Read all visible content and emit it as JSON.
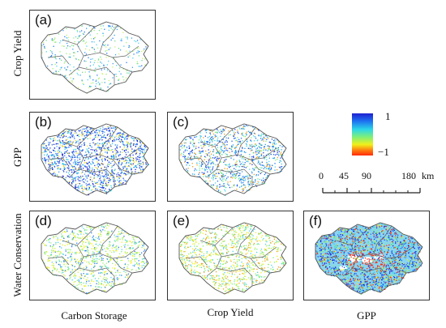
{
  "panels": [
    {
      "id": "a",
      "label": "(a)"
    },
    {
      "id": "b",
      "label": "(b)"
    },
    {
      "id": "c",
      "label": "(c)"
    },
    {
      "id": "d",
      "label": "(d)"
    },
    {
      "id": "e",
      "label": "(e)"
    },
    {
      "id": "f",
      "label": "(f)"
    }
  ],
  "row_labels": [
    "Crop Yield",
    "GPP",
    "Water Conservation"
  ],
  "column_labels": [
    "Carbon Storage",
    "Crop Yield",
    "GPP"
  ],
  "legend": {
    "max_label": "1",
    "min_label": "−1",
    "colors": [
      "#1f1fd1",
      "#1e6ff0",
      "#2ad6e8",
      "#7ff07a",
      "#f1f01a",
      "#ff7a10",
      "#ff2a0a"
    ]
  },
  "scale_bar": {
    "ticks": [
      "0",
      "45",
      "90",
      "180"
    ],
    "unit": "km"
  }
}
